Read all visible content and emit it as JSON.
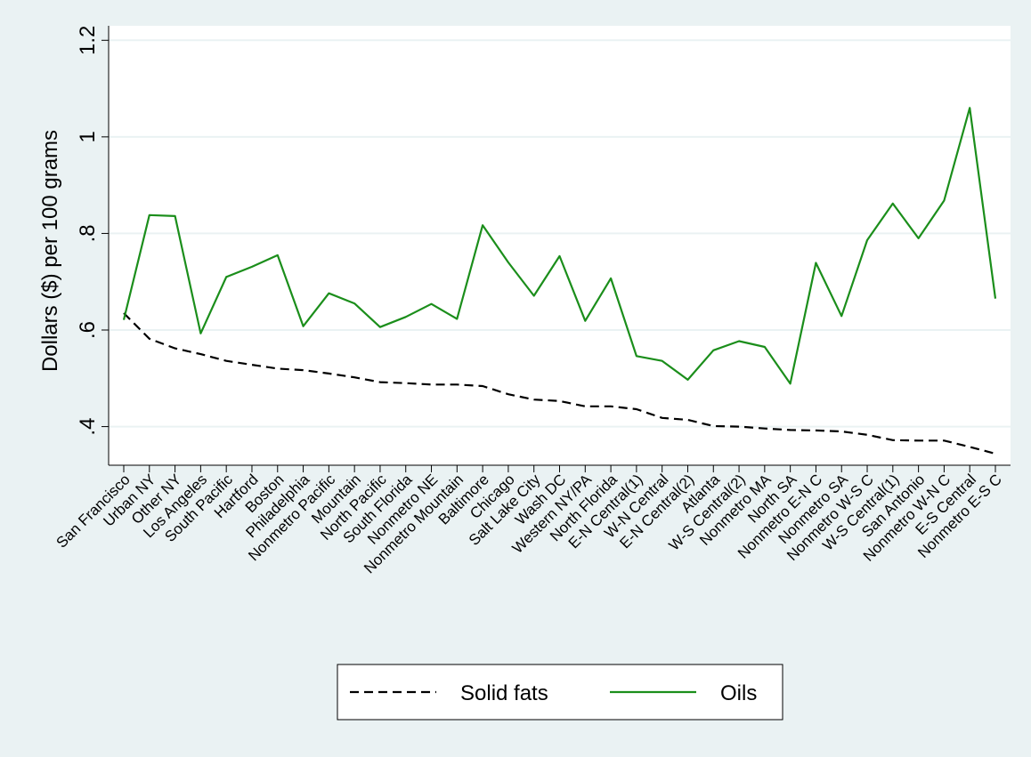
{
  "chart_data": {
    "type": "line",
    "title": "",
    "xlabel": "",
    "ylabel": "Dollars ($) per 100 grams",
    "ylim": [
      0.32,
      1.23
    ],
    "yticks": [
      0.4,
      0.6,
      0.8,
      1,
      1.2
    ],
    "ytick_labels": [
      ".4",
      ".6",
      ".8",
      "1",
      "1.2"
    ],
    "grid": true,
    "legend_position": "bottom",
    "categories": [
      "San Francisco",
      "Urban NY",
      "Other NY",
      "Los Angeles",
      "South Pacific",
      "Hartford",
      "Boston",
      "Philadelphia",
      "Nonmetro Pacific",
      "Mountain",
      "North Pacific",
      "South Florida",
      "Nonmetro NE",
      "Nonmetro Mountain",
      "Baltimore",
      "Chicago",
      "Salt Lake City",
      "Wash DC",
      "Western NY/PA",
      "North Florida",
      "E-N Central(1)",
      "W-N Central",
      "E-N Central(2)",
      "Atlanta",
      "W-S Central(2)",
      "Nonmetro MA",
      "North SA",
      "Nonmetro E-N C",
      "Nonmetro SA",
      "Nonmetro W-S C",
      "W-S Central(1)",
      "San Antonio",
      "Nonmetro W-N C",
      "E-S Central",
      "Nonmetro E-S C"
    ],
    "series": [
      {
        "name": "Solid fats",
        "color": "#000000",
        "style": "dashed",
        "values": [
          0.635,
          0.582,
          0.562,
          0.55,
          0.536,
          0.528,
          0.52,
          0.517,
          0.51,
          0.502,
          0.492,
          0.49,
          0.487,
          0.487,
          0.484,
          0.467,
          0.456,
          0.453,
          0.442,
          0.442,
          0.436,
          0.418,
          0.414,
          0.401,
          0.4,
          0.396,
          0.393,
          0.392,
          0.39,
          0.383,
          0.372,
          0.371,
          0.371,
          0.358,
          0.344
        ]
      },
      {
        "name": "Oils",
        "color": "#1b8e1b",
        "style": "solid",
        "values": [
          0.621,
          0.838,
          0.836,
          0.593,
          0.71,
          0.731,
          0.755,
          0.608,
          0.676,
          0.655,
          0.606,
          0.627,
          0.654,
          0.623,
          0.817,
          0.74,
          0.671,
          0.753,
          0.619,
          0.707,
          0.546,
          0.536,
          0.497,
          0.558,
          0.577,
          0.565,
          0.489,
          0.739,
          0.629,
          0.786,
          0.862,
          0.79,
          0.868,
          1.06,
          0.665
        ]
      }
    ]
  }
}
